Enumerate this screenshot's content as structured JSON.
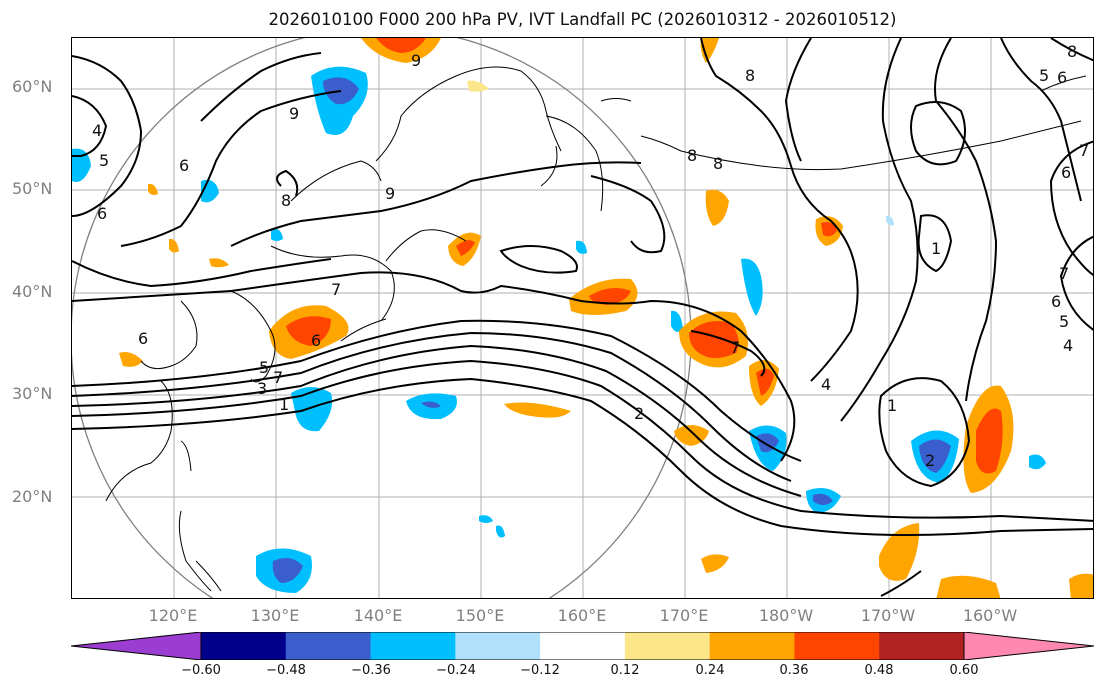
{
  "title": "2026010100 F000 200 hPa PV, IVT Landfall PC (2026010312 - 2026010512)",
  "lat_labels": [
    "60°N",
    "50°N",
    "40°N",
    "30°N",
    "20°N"
  ],
  "lon_labels": [
    "120°E",
    "130°E",
    "140°E",
    "150°E",
    "160°E",
    "170°E",
    "180°W",
    "170°W",
    "160°W"
  ],
  "colorbar": {
    "ticks": [
      "−0.60",
      "−0.48",
      "−0.36",
      "−0.24",
      "−0.12",
      "0.12",
      "0.24",
      "0.36",
      "0.48",
      "0.60"
    ],
    "colors": [
      "#9a3dd0",
      "#00008b",
      "#3a5fcd",
      "#00bfff",
      "#b0e0fa",
      "#ffffff",
      "#fde68a",
      "#ffa500",
      "#ff4500",
      "#b22222",
      "#ff88b0"
    ]
  },
  "contour_labels": [
    "4",
    "5",
    "6",
    "6",
    "9",
    "8",
    "9",
    "8",
    "8",
    "8",
    "9",
    "7",
    "6",
    "6",
    "7",
    "5",
    "3",
    "1",
    "2",
    "7",
    "4",
    "1",
    "1",
    "2",
    "5",
    "6",
    "8",
    "7",
    "6",
    "5",
    "4",
    "6",
    "7"
  ]
}
